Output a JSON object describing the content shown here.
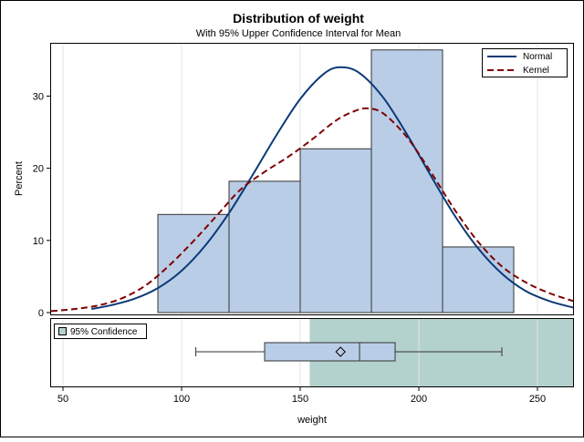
{
  "chart_data": {
    "type": "bar",
    "title": "Distribution of weight",
    "subtitle": "With 95% Upper Confidence Interval for Mean",
    "xlabel": "weight",
    "ylabel": "Percent",
    "xlim": [
      45,
      265
    ],
    "ylim": [
      0,
      36.5
    ],
    "x_ticks": [
      50,
      100,
      150,
      200,
      250
    ],
    "y_ticks": [
      0,
      10,
      20,
      30
    ],
    "grid": true,
    "legend_position": "top-right",
    "histogram": {
      "bins": [
        {
          "start": 90,
          "end": 120,
          "percent": 13.6
        },
        {
          "start": 120,
          "end": 150,
          "percent": 18.2
        },
        {
          "start": 150,
          "end": 180,
          "percent": 22.7
        },
        {
          "start": 180,
          "end": 210,
          "percent": 36.4
        },
        {
          "start": 210,
          "end": 240,
          "percent": 9.1
        }
      ],
      "fill": "#b9cde6",
      "stroke": "#333333"
    },
    "curves": [
      {
        "name": "Normal",
        "style": "solid",
        "color": "#0b3a78",
        "points": [
          [
            62,
            0.5
          ],
          [
            70,
            1.0
          ],
          [
            80,
            1.9
          ],
          [
            90,
            3.4
          ],
          [
            100,
            5.8
          ],
          [
            110,
            9.3
          ],
          [
            120,
            13.8
          ],
          [
            130,
            19.1
          ],
          [
            140,
            24.6
          ],
          [
            150,
            29.6
          ],
          [
            160,
            33.1
          ],
          [
            167,
            34.0
          ],
          [
            175,
            33.2
          ],
          [
            185,
            29.8
          ],
          [
            195,
            24.7
          ],
          [
            205,
            19.0
          ],
          [
            215,
            13.5
          ],
          [
            225,
            8.9
          ],
          [
            235,
            5.4
          ],
          [
            245,
            3.0
          ],
          [
            255,
            1.6
          ],
          [
            265,
            0.7
          ]
        ]
      },
      {
        "name": "Kernel",
        "style": "dashed",
        "color": "#7f0000",
        "points": [
          [
            45,
            0.2
          ],
          [
            55,
            0.5
          ],
          [
            65,
            1.0
          ],
          [
            75,
            2.0
          ],
          [
            85,
            3.8
          ],
          [
            95,
            6.6
          ],
          [
            105,
            9.9
          ],
          [
            115,
            13.5
          ],
          [
            125,
            17.1
          ],
          [
            135,
            19.5
          ],
          [
            145,
            21.6
          ],
          [
            155,
            24.0
          ],
          [
            165,
            26.6
          ],
          [
            172,
            27.8
          ],
          [
            178,
            28.3
          ],
          [
            185,
            27.6
          ],
          [
            195,
            24.3
          ],
          [
            205,
            19.5
          ],
          [
            215,
            14.3
          ],
          [
            225,
            9.8
          ],
          [
            235,
            6.4
          ],
          [
            245,
            4.2
          ],
          [
            255,
            2.7
          ],
          [
            265,
            1.6
          ]
        ]
      }
    ],
    "boxplot": {
      "min": 106,
      "q1": 135,
      "median": 175,
      "mean": 167,
      "q3": 190,
      "max": 235,
      "fill": "#b9cde6"
    },
    "confidence_band": {
      "label": "95% Confidence",
      "from": 154,
      "to": 265,
      "color": "#b4d2cd"
    }
  }
}
